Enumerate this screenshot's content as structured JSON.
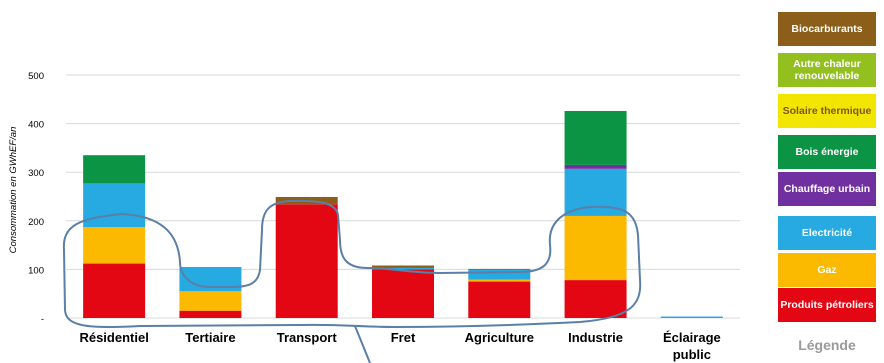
{
  "chart_data": {
    "type": "bar",
    "stacked": true,
    "ylabel": "Consommation en GWhEF/an",
    "ylim": [
      0,
      500
    ],
    "yticks": [
      "-",
      "100",
      "200",
      "300",
      "400",
      "500"
    ],
    "grid": true,
    "categories": [
      "Résidentiel",
      "Tertiaire",
      "Transport",
      "Fret",
      "Agriculture",
      "Industrie",
      "Éclairage public"
    ],
    "series": [
      {
        "name": "Produits pétroliers",
        "color": "#e30613",
        "values": [
          112,
          15,
          234,
          100,
          75,
          78,
          0
        ]
      },
      {
        "name": "Gaz",
        "color": "#fbb900",
        "values": [
          75,
          40,
          0,
          0,
          4,
          132,
          0
        ]
      },
      {
        "name": "Electricité",
        "color": "#27aae1",
        "values": [
          90,
          50,
          0,
          3,
          20,
          97,
          3
        ]
      },
      {
        "name": "Chauffage urbain",
        "color": "#7030a0",
        "values": [
          0,
          0,
          0,
          0,
          0,
          8,
          0
        ]
      },
      {
        "name": "Bois énergie",
        "color": "#0b9444",
        "values": [
          58,
          0,
          0,
          0,
          0,
          111,
          0
        ]
      },
      {
        "name": "Solaire thermique",
        "color": "#f2e500",
        "values": [
          0,
          0,
          0,
          0,
          0,
          0,
          0
        ]
      },
      {
        "name": "Autre chaleur renouvelable",
        "color": "#94c01f",
        "values": [
          0,
          0,
          0,
          0,
          0,
          0,
          0
        ]
      },
      {
        "name": "Biocarburants",
        "color": "#8b5e1a",
        "values": [
          0,
          0,
          15,
          5,
          2,
          0,
          0
        ]
      }
    ],
    "legend": {
      "title": "Légende",
      "placement": "right",
      "items": [
        {
          "label": "Biocarburants",
          "color": "#8b5e1a"
        },
        {
          "label": "Autre chaleur renouvelable",
          "color": "#94c01f"
        },
        {
          "label": "Solaire thermique",
          "color": "#f2e500"
        },
        {
          "label": "Bois énergie",
          "color": "#0b9444"
        },
        {
          "label": "Chauffage urbain",
          "color": "#7030a0"
        },
        {
          "label": "Electricité",
          "color": "#27aae1"
        },
        {
          "label": "Gaz",
          "color": "#fbb900"
        },
        {
          "label": "Produits pétroliers",
          "color": "#e30613"
        }
      ]
    },
    "annotation": {
      "color": "#5b7fa6"
    }
  }
}
